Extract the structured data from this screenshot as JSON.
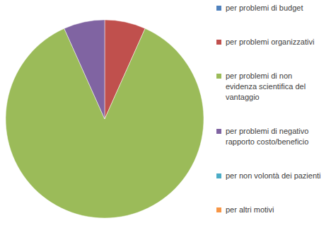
{
  "chart_data": {
    "type": "pie",
    "categories": [
      "per problemi di budget",
      "per problemi organizzativi",
      "per problemi di non evidenza scientifica del vantaggio",
      "per problemi di negativo rapporto costo/beneficio",
      "per non volontà dei pazienti",
      "per altri motivi"
    ],
    "values": [
      0,
      6.7,
      86.6,
      6.7,
      0,
      0
    ],
    "colors": [
      "#4f81bd",
      "#c0504d",
      "#9bbb59",
      "#8064a2",
      "#4bacc6",
      "#f79646"
    ],
    "legend": "right"
  }
}
